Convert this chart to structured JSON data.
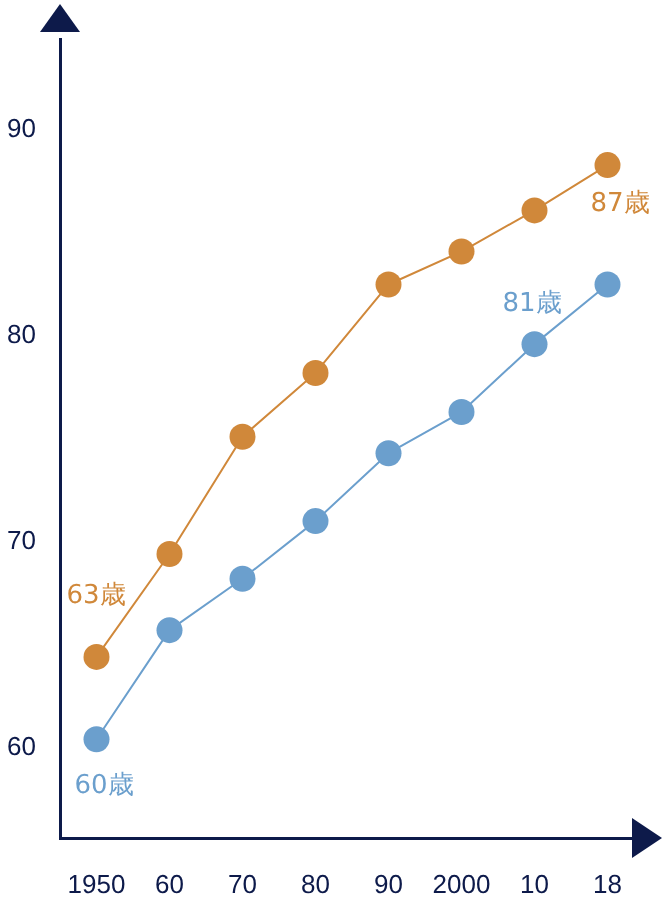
{
  "chart_data": {
    "type": "line",
    "categories": [
      "1950",
      "60",
      "70",
      "80",
      "90",
      "2000",
      "10",
      "18"
    ],
    "series": [
      {
        "color": "#d0883a",
        "values": [
          64.4,
          69.4,
          75.1,
          78.2,
          82.5,
          84.1,
          86.1,
          88.3
        ]
      },
      {
        "color": "#6b9fcd",
        "values": [
          60.4,
          65.7,
          68.2,
          71.0,
          74.3,
          76.3,
          79.6,
          82.5
        ]
      }
    ],
    "ylim": [
      55.6,
      94.4
    ],
    "yticks": [
      60,
      70,
      80,
      90
    ],
    "grid": false,
    "legend": false,
    "marker": "circle",
    "line_style": "solid",
    "annotations": [
      "63歳",
      "60歳",
      "81歳",
      "87歳"
    ]
  }
}
